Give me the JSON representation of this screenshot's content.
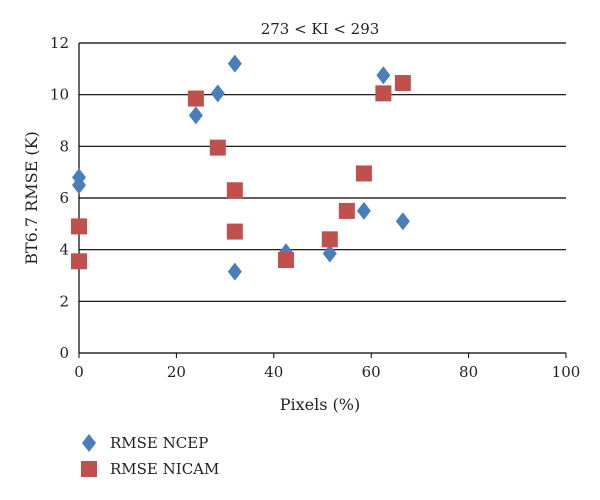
{
  "chart_data": {
    "type": "scatter",
    "title": "273 < KI < 293",
    "xlabel": "Pixels (%)",
    "ylabel": "BT6.7  RMSE (K)",
    "xlim": [
      0,
      100
    ],
    "ylim": [
      0,
      12
    ],
    "x_ticks": [
      "0",
      "20",
      "40",
      "60",
      "80",
      "100"
    ],
    "y_ticks": [
      "0",
      "2",
      "4",
      "6",
      "8",
      "10",
      "12"
    ],
    "grid": "horizontal",
    "legend_position": "bottom-left",
    "series": [
      {
        "name": "RMSE NCEP",
        "marker": "diamond",
        "color": "#4a7ebb",
        "points": [
          {
            "x": 0,
            "y": 6.8
          },
          {
            "x": 0,
            "y": 6.5
          },
          {
            "x": 24,
            "y": 9.2
          },
          {
            "x": 28.5,
            "y": 10.05
          },
          {
            "x": 32,
            "y": 11.2
          },
          {
            "x": 32,
            "y": 3.15
          },
          {
            "x": 42.5,
            "y": 3.9
          },
          {
            "x": 51.5,
            "y": 3.85
          },
          {
            "x": 58.5,
            "y": 5.5
          },
          {
            "x": 62.5,
            "y": 10.75
          },
          {
            "x": 66.5,
            "y": 5.1
          }
        ]
      },
      {
        "name": "RMSE NICAM",
        "marker": "square",
        "color": "#c0504d",
        "points": [
          {
            "x": 0,
            "y": 4.9
          },
          {
            "x": 0,
            "y": 3.55
          },
          {
            "x": 24,
            "y": 9.85
          },
          {
            "x": 28.5,
            "y": 7.95
          },
          {
            "x": 32,
            "y": 6.3
          },
          {
            "x": 32,
            "y": 4.7
          },
          {
            "x": 42.5,
            "y": 3.6
          },
          {
            "x": 51.5,
            "y": 4.4
          },
          {
            "x": 55,
            "y": 5.5
          },
          {
            "x": 58.5,
            "y": 6.95
          },
          {
            "x": 62.5,
            "y": 10.05
          },
          {
            "x": 66.5,
            "y": 10.45
          }
        ]
      }
    ]
  }
}
